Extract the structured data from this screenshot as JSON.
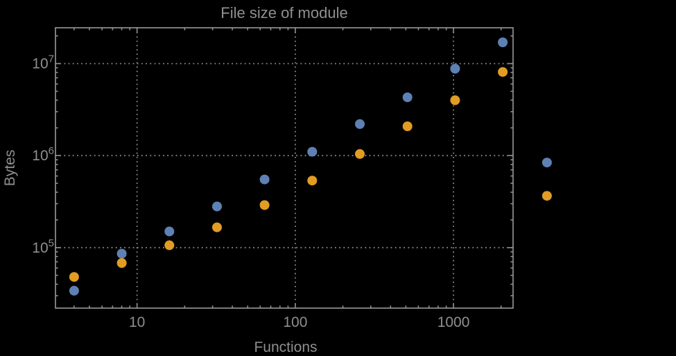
{
  "chart_data": {
    "type": "scatter",
    "title": "File size of module",
    "xlabel": "Functions",
    "ylabel": "Bytes",
    "x_scale": "log",
    "y_scale": "log",
    "xlim": [
      3.05,
      2380
    ],
    "ylim": [
      22000,
      24500000
    ],
    "x_ticks": [
      10,
      100,
      1000
    ],
    "x_tick_labels": [
      "10",
      "100",
      "1000"
    ],
    "y_ticks": [
      100000,
      1000000,
      10000000
    ],
    "y_tick_base": "10",
    "y_tick_exponents": [
      "5",
      "6",
      "7"
    ],
    "grid": "dotted at major ticks, minor log ticks on all frame edges, no legend",
    "marker_diameter": 14,
    "series": [
      {
        "name": "blue-series",
        "color": "#5e81b5",
        "points": [
          [
            4,
            34000
          ],
          [
            8,
            86000
          ],
          [
            16,
            150000
          ],
          [
            32,
            280000
          ],
          [
            64,
            550000
          ],
          [
            128,
            1100000
          ],
          [
            256,
            2200000
          ],
          [
            512,
            4300000
          ],
          [
            1024,
            8800000
          ],
          [
            2048,
            17000000
          ],
          [
            3900,
            840000
          ]
        ]
      },
      {
        "name": "orange-series",
        "color": "#e19c24",
        "points": [
          [
            4,
            48000
          ],
          [
            8,
            68000
          ],
          [
            16,
            106000
          ],
          [
            32,
            166000
          ],
          [
            64,
            290000
          ],
          [
            128,
            535000
          ],
          [
            256,
            1040000
          ],
          [
            512,
            2080000
          ],
          [
            1024,
            4000000
          ],
          [
            2048,
            8100000
          ],
          [
            3900,
            365000
          ]
        ]
      }
    ],
    "colors": {
      "background": "#000000",
      "frame": "#919191",
      "grid": "#8a8a8a",
      "text": "#8f8f8f"
    }
  }
}
